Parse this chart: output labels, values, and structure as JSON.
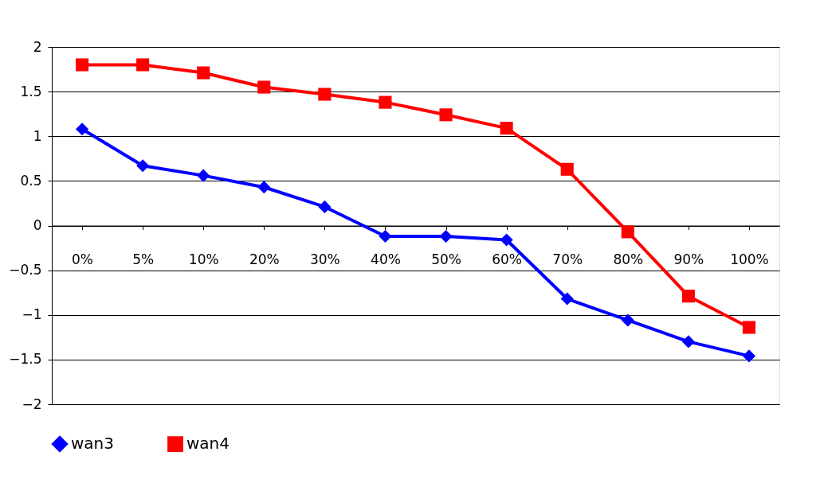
{
  "chart_data": {
    "type": "line",
    "categories": [
      "0%",
      "5%",
      "10%",
      "20%",
      "30%",
      "40%",
      "50%",
      "60%",
      "70%",
      "80%",
      "90%",
      "100%"
    ],
    "series": [
      {
        "name": "wan3",
        "color": "#0000ff",
        "marker": "diamond",
        "values": [
          1.08,
          0.67,
          0.56,
          0.43,
          0.21,
          -0.12,
          -0.12,
          -0.16,
          -0.82,
          -1.06,
          -1.3,
          -1.46
        ]
      },
      {
        "name": "wan4",
        "color": "#ff0000",
        "marker": "square",
        "values": [
          1.8,
          1.8,
          1.71,
          1.55,
          1.47,
          1.38,
          1.24,
          1.09,
          0.63,
          -0.07,
          -0.79,
          -1.14
        ]
      }
    ],
    "ylim": [
      -2,
      2
    ],
    "yticks": [
      {
        "value": -2,
        "label": "−2"
      },
      {
        "value": -1.5,
        "label": "−1.5"
      },
      {
        "value": -1,
        "label": "−1"
      },
      {
        "value": -0.5,
        "label": "−0.5"
      },
      0,
      0.5,
      1,
      1.5,
      2
    ],
    "grid": "y",
    "legend": "bottom",
    "line_style": "solid"
  }
}
